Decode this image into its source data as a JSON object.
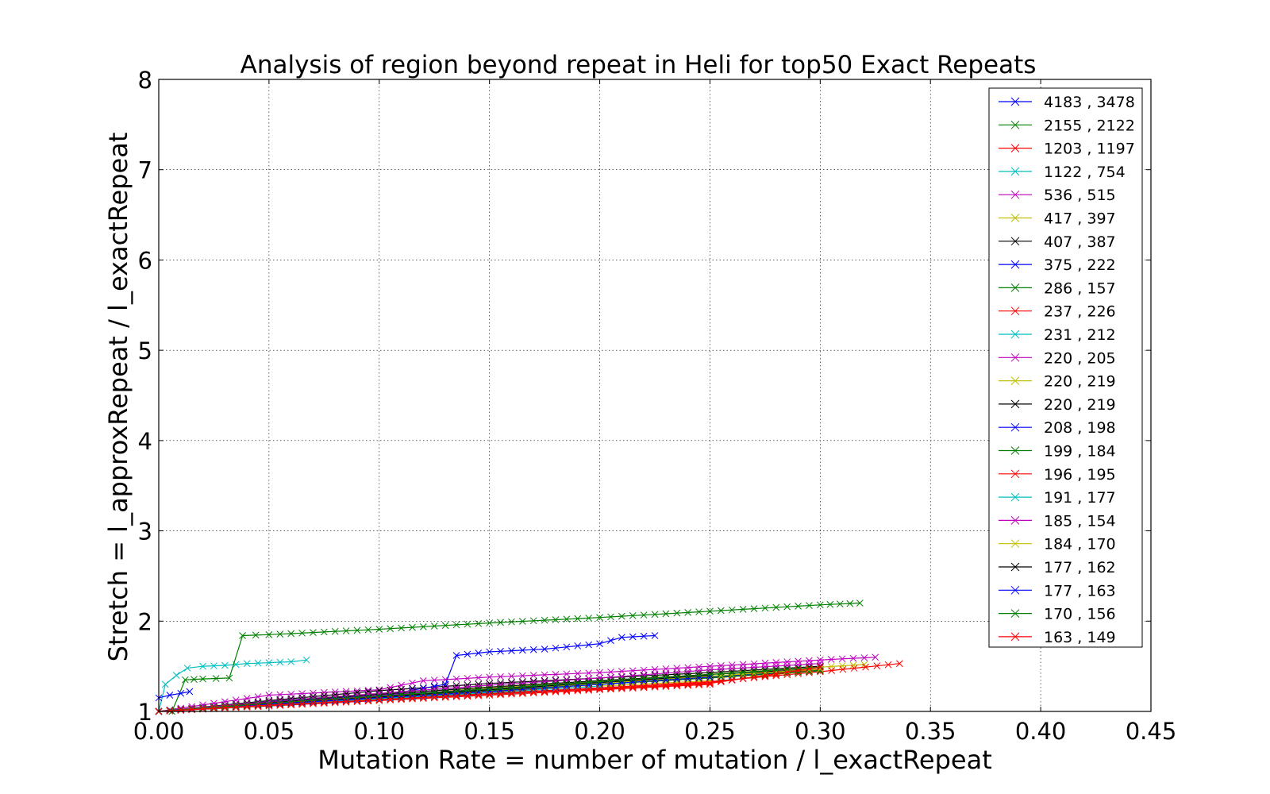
{
  "chart_data": {
    "type": "line",
    "title": "Analysis of region beyond repeat in Heli for top50 Exact Repeats",
    "xlabel": "Mutation Rate = number of mutation / l_exactRepeat",
    "ylabel": "Stretch =  l_approxRepeat / l_exactRepeat",
    "xlim": [
      0.0,
      0.45
    ],
    "ylim": [
      1,
      8
    ],
    "grid": true,
    "legend_position": "top-right",
    "marker": "x",
    "x_ticks": [
      "0.00",
      "0.05",
      "0.10",
      "0.15",
      "0.20",
      "0.25",
      "0.30",
      "0.35",
      "0.40",
      "0.45"
    ],
    "y_ticks": [
      "1",
      "2",
      "3",
      "4",
      "5",
      "6",
      "7",
      "8"
    ],
    "series": [
      {
        "name": "4183 , 3478",
        "color": "#0000ff",
        "points": [
          [
            0,
            1.0
          ],
          [
            0.05,
            1.09
          ],
          [
            0.1,
            1.16
          ],
          [
            0.15,
            1.23
          ],
          [
            0.2,
            1.31
          ],
          [
            0.25,
            1.38
          ],
          [
            0.3,
            1.45
          ]
        ]
      },
      {
        "name": "2155 , 2122",
        "color": "#008000",
        "points": [
          [
            0,
            1.0
          ],
          [
            0.05,
            1.1
          ],
          [
            0.1,
            1.17
          ],
          [
            0.15,
            1.24
          ],
          [
            0.2,
            1.31
          ],
          [
            0.25,
            1.39
          ],
          [
            0.3,
            1.46
          ]
        ]
      },
      {
        "name": "1203 , 1197",
        "color": "#ff0000",
        "points": [
          [
            0,
            1.0
          ],
          [
            0.05,
            1.08
          ],
          [
            0.1,
            1.14
          ],
          [
            0.15,
            1.2
          ],
          [
            0.2,
            1.26
          ],
          [
            0.25,
            1.32
          ],
          [
            0.3,
            1.47
          ]
        ]
      },
      {
        "name": "1122 , 754",
        "color": "#00bfbf",
        "points": [
          [
            0,
            1.0
          ],
          [
            0.003,
            1.3
          ],
          [
            0.008,
            1.4
          ],
          [
            0.013,
            1.48
          ],
          [
            0.02,
            1.5
          ],
          [
            0.03,
            1.51
          ],
          [
            0.04,
            1.53
          ],
          [
            0.05,
            1.54
          ],
          [
            0.06,
            1.55
          ],
          [
            0.067,
            1.57
          ]
        ]
      },
      {
        "name": "536 , 515",
        "color": "#bf00bf",
        "points": [
          [
            0,
            1.0
          ],
          [
            0.05,
            1.18
          ],
          [
            0.1,
            1.24
          ],
          [
            0.12,
            1.34
          ],
          [
            0.15,
            1.38
          ],
          [
            0.2,
            1.43
          ],
          [
            0.25,
            1.5
          ],
          [
            0.3,
            1.57
          ],
          [
            0.325,
            1.6
          ]
        ]
      },
      {
        "name": "417 , 397",
        "color": "#bfbf00",
        "points": [
          [
            0,
            1.0
          ],
          [
            0.05,
            1.1
          ],
          [
            0.1,
            1.17
          ],
          [
            0.15,
            1.26
          ],
          [
            0.2,
            1.33
          ],
          [
            0.25,
            1.41
          ],
          [
            0.3,
            1.49
          ],
          [
            0.32,
            1.52
          ]
        ]
      },
      {
        "name": "407 , 387",
        "color": "#000000",
        "points": [
          [
            0,
            1.0
          ],
          [
            0.05,
            1.12
          ],
          [
            0.1,
            1.23
          ],
          [
            0.15,
            1.31
          ],
          [
            0.2,
            1.37
          ],
          [
            0.25,
            1.43
          ],
          [
            0.3,
            1.5
          ]
        ]
      },
      {
        "name": "375 , 222",
        "color": "#0000ff",
        "points": [
          [
            0,
            1.0
          ],
          [
            0.05,
            1.09
          ],
          [
            0.1,
            1.17
          ],
          [
            0.13,
            1.3
          ],
          [
            0.135,
            1.62
          ],
          [
            0.15,
            1.66
          ],
          [
            0.175,
            1.69
          ],
          [
            0.2,
            1.75
          ],
          [
            0.21,
            1.82
          ],
          [
            0.225,
            1.84
          ]
        ]
      },
      {
        "name": "286 , 157",
        "color": "#008000",
        "points": [
          [
            0,
            1.0
          ],
          [
            0.006,
            1.0
          ],
          [
            0.012,
            1.35
          ],
          [
            0.02,
            1.36
          ],
          [
            0.032,
            1.37
          ],
          [
            0.038,
            1.84
          ],
          [
            0.05,
            1.85
          ],
          [
            0.1,
            1.91
          ],
          [
            0.15,
            1.98
          ],
          [
            0.2,
            2.04
          ],
          [
            0.25,
            2.11
          ],
          [
            0.3,
            2.18
          ],
          [
            0.318,
            2.2
          ]
        ]
      },
      {
        "name": "237 , 226",
        "color": "#ff0000",
        "points": [
          [
            0,
            1.0
          ],
          [
            0.05,
            1.07
          ],
          [
            0.1,
            1.13
          ],
          [
            0.15,
            1.2
          ],
          [
            0.2,
            1.26
          ],
          [
            0.25,
            1.33
          ],
          [
            0.3,
            1.44
          ],
          [
            0.336,
            1.53
          ]
        ]
      },
      {
        "name": "231 , 212",
        "color": "#00bfbf",
        "points": [
          [
            0,
            1.0
          ],
          [
            0.05,
            1.09
          ],
          [
            0.1,
            1.16
          ],
          [
            0.15,
            1.24
          ],
          [
            0.2,
            1.31
          ],
          [
            0.25,
            1.38
          ]
        ]
      },
      {
        "name": "220 , 205",
        "color": "#bf00bf",
        "points": [
          [
            0,
            1.0
          ],
          [
            0.05,
            1.1
          ],
          [
            0.1,
            1.18
          ],
          [
            0.15,
            1.25
          ],
          [
            0.2,
            1.32
          ]
        ]
      },
      {
        "name": "220 , 219",
        "color": "#bfbf00",
        "points": [
          [
            0,
            1.0
          ],
          [
            0.05,
            1.08
          ],
          [
            0.1,
            1.15
          ],
          [
            0.15,
            1.22
          ],
          [
            0.2,
            1.28
          ],
          [
            0.25,
            1.34
          ]
        ]
      },
      {
        "name": "220 , 219",
        "color": "#000000",
        "points": [
          [
            0,
            1.0
          ],
          [
            0.05,
            1.1
          ],
          [
            0.1,
            1.19
          ],
          [
            0.15,
            1.27
          ],
          [
            0.2,
            1.34
          ],
          [
            0.25,
            1.41
          ],
          [
            0.3,
            1.47
          ]
        ]
      },
      {
        "name": "208 , 198",
        "color": "#0000ff",
        "points": [
          [
            0,
            1.15
          ],
          [
            0.005,
            1.18
          ],
          [
            0.01,
            1.2
          ],
          [
            0.014,
            1.22
          ]
        ]
      },
      {
        "name": "199 , 184",
        "color": "#008000",
        "points": [
          [
            0,
            1.0
          ],
          [
            0.05,
            1.08
          ],
          [
            0.1,
            1.15
          ],
          [
            0.15,
            1.23
          ],
          [
            0.2,
            1.3
          ],
          [
            0.25,
            1.37
          ],
          [
            0.3,
            1.45
          ]
        ]
      },
      {
        "name": "196 , 195",
        "color": "#ff0000",
        "points": [
          [
            0,
            1.0
          ],
          [
            0.05,
            1.06
          ],
          [
            0.1,
            1.12
          ],
          [
            0.15,
            1.18
          ],
          [
            0.2,
            1.24
          ],
          [
            0.25,
            1.3
          ]
        ]
      },
      {
        "name": "191 , 177",
        "color": "#00bfbf",
        "points": [
          [
            0,
            1.0
          ],
          [
            0.05,
            1.07
          ],
          [
            0.1,
            1.14
          ],
          [
            0.15,
            1.21
          ],
          [
            0.2,
            1.28
          ]
        ]
      },
      {
        "name": "185 , 154",
        "color": "#bf00bf",
        "points": [
          [
            0,
            1.0
          ],
          [
            0.05,
            1.11
          ],
          [
            0.1,
            1.2
          ],
          [
            0.15,
            1.29
          ],
          [
            0.2,
            1.37
          ],
          [
            0.25,
            1.46
          ],
          [
            0.3,
            1.53
          ]
        ]
      },
      {
        "name": "184 , 170",
        "color": "#bfbf00",
        "points": [
          [
            0,
            1.0
          ],
          [
            0.05,
            1.09
          ],
          [
            0.1,
            1.16
          ],
          [
            0.15,
            1.24
          ],
          [
            0.2,
            1.31
          ],
          [
            0.25,
            1.39
          ],
          [
            0.3,
            1.47
          ]
        ]
      },
      {
        "name": "177 , 162",
        "color": "#000000",
        "points": [
          [
            0,
            1.0
          ],
          [
            0.05,
            1.08
          ],
          [
            0.1,
            1.16
          ],
          [
            0.15,
            1.24
          ],
          [
            0.2,
            1.32
          ],
          [
            0.25,
            1.4
          ]
        ]
      },
      {
        "name": "177 , 163",
        "color": "#0000ff",
        "points": [
          [
            0,
            1.0
          ],
          [
            0.05,
            1.08
          ],
          [
            0.1,
            1.15
          ],
          [
            0.15,
            1.22
          ],
          [
            0.2,
            1.3
          ],
          [
            0.25,
            1.38
          ]
        ]
      },
      {
        "name": "170 , 156",
        "color": "#008000",
        "points": [
          [
            0,
            1.0
          ],
          [
            0.05,
            1.09
          ],
          [
            0.1,
            1.17
          ],
          [
            0.15,
            1.25
          ],
          [
            0.2,
            1.33
          ],
          [
            0.25,
            1.41
          ],
          [
            0.3,
            1.49
          ]
        ]
      },
      {
        "name": "163 , 149",
        "color": "#ff0000",
        "points": [
          [
            0,
            1.0
          ],
          [
            0.05,
            1.07
          ],
          [
            0.1,
            1.13
          ],
          [
            0.15,
            1.19
          ],
          [
            0.2,
            1.25
          ],
          [
            0.25,
            1.31
          ],
          [
            0.3,
            1.49
          ]
        ]
      }
    ]
  }
}
